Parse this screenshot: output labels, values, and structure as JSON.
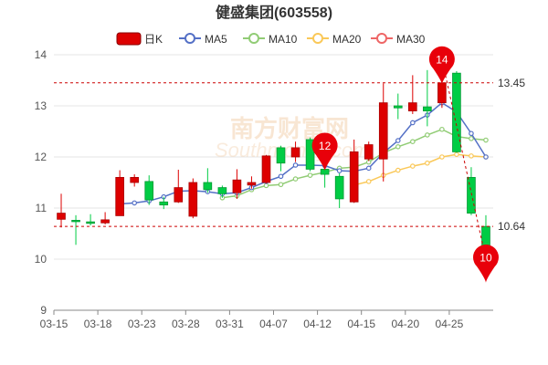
{
  "chart_data": {
    "type": "candlestick",
    "title": "健盛集团(603558)",
    "legend": [
      {
        "name": "日K",
        "color": "#dd0000"
      },
      {
        "name": "MA5",
        "color": "#5470c6"
      },
      {
        "name": "MA10",
        "color": "#91cc75"
      },
      {
        "name": "MA20",
        "color": "#fac858"
      },
      {
        "name": "MA30",
        "color": "#ee6666"
      }
    ],
    "ylim": [
      9,
      14
    ],
    "yticks": [
      "9",
      "10",
      "11",
      "12",
      "13",
      "14"
    ],
    "xticks": [
      "03-15",
      "03-18",
      "03-23",
      "03-28",
      "03-31",
      "04-07",
      "04-12",
      "04-15",
      "04-20",
      "04-25"
    ],
    "candles": [
      {
        "o": 10.78,
        "c": 10.9,
        "h": 11.28,
        "l": 10.62
      },
      {
        "o": 10.76,
        "c": 10.74,
        "h": 10.86,
        "l": 10.28
      },
      {
        "o": 10.73,
        "c": 10.7,
        "h": 10.88,
        "l": 10.66
      },
      {
        "o": 10.71,
        "c": 10.77,
        "h": 10.92,
        "l": 10.68
      },
      {
        "o": 10.85,
        "c": 11.6,
        "h": 11.74,
        "l": 10.85
      },
      {
        "o": 11.5,
        "c": 11.6,
        "h": 11.66,
        "l": 11.42
      },
      {
        "o": 11.52,
        "c": 11.16,
        "h": 11.64,
        "l": 11.06
      },
      {
        "o": 11.12,
        "c": 11.06,
        "h": 11.22,
        "l": 10.98
      },
      {
        "o": 11.12,
        "c": 11.4,
        "h": 11.75,
        "l": 11.1
      },
      {
        "o": 10.84,
        "c": 11.5,
        "h": 11.58,
        "l": 10.8
      },
      {
        "o": 11.5,
        "c": 11.36,
        "h": 11.78,
        "l": 11.3
      },
      {
        "o": 11.4,
        "c": 11.28,
        "h": 11.44,
        "l": 11.2
      },
      {
        "o": 11.3,
        "c": 11.55,
        "h": 11.76,
        "l": 11.18
      },
      {
        "o": 11.45,
        "c": 11.5,
        "h": 11.62,
        "l": 11.38
      },
      {
        "o": 11.5,
        "c": 12.02,
        "h": 12.04,
        "l": 11.48
      },
      {
        "o": 12.18,
        "c": 11.88,
        "h": 12.22,
        "l": 11.72
      },
      {
        "o": 12.0,
        "c": 12.18,
        "h": 12.3,
        "l": 11.9
      },
      {
        "o": 12.34,
        "c": 11.76,
        "h": 12.38,
        "l": 11.72
      },
      {
        "o": 11.76,
        "c": 11.66,
        "h": 11.8,
        "l": 11.4
      },
      {
        "o": 11.62,
        "c": 11.18,
        "h": 11.68,
        "l": 11.0
      },
      {
        "o": 11.12,
        "c": 12.1,
        "h": 12.34,
        "l": 11.1
      },
      {
        "o": 11.96,
        "c": 12.24,
        "h": 12.3,
        "l": 11.92
      },
      {
        "o": 11.96,
        "c": 13.06,
        "h": 13.44,
        "l": 11.52
      },
      {
        "o": 13.0,
        "c": 12.96,
        "h": 13.24,
        "l": 12.74
      },
      {
        "o": 12.9,
        "c": 13.06,
        "h": 13.6,
        "l": 12.84
      },
      {
        "o": 12.98,
        "c": 12.9,
        "h": 13.7,
        "l": 12.6
      },
      {
        "o": 13.06,
        "c": 13.45,
        "h": 13.6,
        "l": 12.96
      },
      {
        "o": 13.64,
        "c": 12.1,
        "h": 13.68,
        "l": 12.08
      },
      {
        "o": 11.6,
        "c": 10.9,
        "h": 11.8,
        "l": 10.86
      },
      {
        "o": 10.64,
        "c": 10.0,
        "h": 10.86,
        "l": 9.82
      }
    ],
    "ma5": [
      null,
      null,
      null,
      null,
      11.08,
      11.1,
      11.14,
      11.22,
      11.33,
      11.34,
      11.32,
      11.28,
      11.3,
      11.4,
      11.52,
      11.62,
      11.84,
      11.84,
      11.83,
      11.73,
      11.72,
      11.78,
      12.08,
      12.32,
      12.67,
      12.82,
      13.06,
      12.88,
      12.46,
      12.0
    ],
    "ma10": [
      null,
      null,
      null,
      null,
      null,
      null,
      null,
      null,
      null,
      null,
      null,
      11.2,
      11.24,
      11.36,
      11.44,
      11.46,
      11.57,
      11.64,
      11.7,
      11.78,
      11.8,
      11.9,
      12.08,
      12.2,
      12.3,
      12.43,
      12.54,
      12.4,
      12.36,
      12.33
    ],
    "ma20": [
      null,
      null,
      null,
      null,
      null,
      null,
      null,
      null,
      null,
      null,
      null,
      null,
      null,
      null,
      null,
      null,
      null,
      null,
      null,
      null,
      11.45,
      11.52,
      11.64,
      11.74,
      11.82,
      11.88,
      12.0,
      12.05,
      12.02,
      12.0
    ],
    "ref_high": {
      "value": 13.45,
      "label": "13.45"
    },
    "ref_low": {
      "value": 10.64,
      "label": "10.64"
    },
    "markers": [
      {
        "label": "14",
        "index": 26,
        "value": 13.45
      },
      {
        "label": "12",
        "index": 18,
        "value": 11.76
      },
      {
        "label": "10",
        "index": 29,
        "value": 10.0
      }
    ],
    "grid": true,
    "legend_position": "top-center"
  },
  "watermark": {
    "text": "南方财富网",
    "sub": "Southmoney.com"
  },
  "colors": {
    "up": "#dd0000",
    "down": "#00cc44",
    "grid": "#e6e6e6",
    "ref_line": "#cc0000"
  }
}
